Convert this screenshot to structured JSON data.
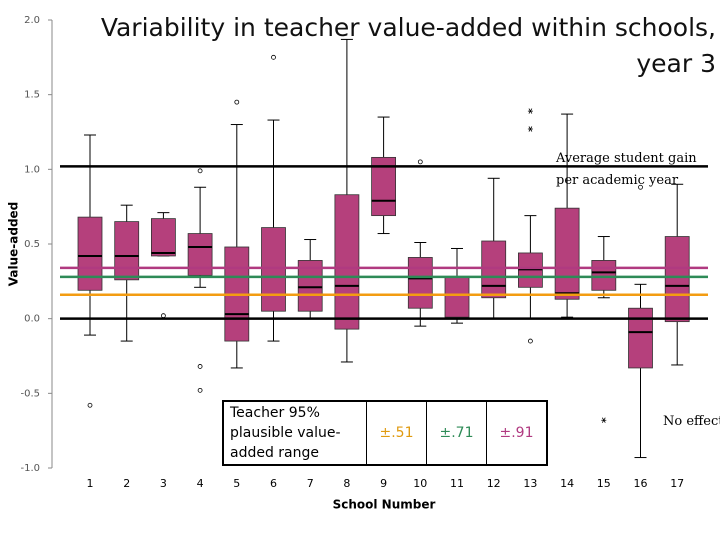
{
  "chart_data": {
    "type": "box",
    "title": "Variability in teacher value-added within schools, year 3",
    "x_label": "School Number",
    "y_label": "Value-added",
    "categories": [
      "1",
      "2",
      "3",
      "4",
      "5",
      "6",
      "7",
      "8",
      "9",
      "10",
      "11",
      "12",
      "13",
      "14",
      "15",
      "16",
      "17"
    ],
    "box_color": "#b5407c",
    "boxes": [
      {
        "low": -0.11,
        "q1": 0.19,
        "median": 0.42,
        "q3": 0.68,
        "high": 1.23,
        "outliers": [
          -0.58
        ],
        "extremes": []
      },
      {
        "low": -0.15,
        "q1": 0.26,
        "median": 0.42,
        "q3": 0.65,
        "high": 0.76,
        "outliers": [],
        "extremes": []
      },
      {
        "low": 0.42,
        "q1": 0.42,
        "median": 0.44,
        "q3": 0.67,
        "high": 0.71,
        "outliers": [
          0.02
        ],
        "extremes": []
      },
      {
        "low": 0.21,
        "q1": 0.29,
        "median": 0.48,
        "q3": 0.57,
        "high": 0.88,
        "outliers": [
          0.99,
          -0.32,
          -0.48
        ],
        "extremes": []
      },
      {
        "low": -0.33,
        "q1": -0.15,
        "median": 0.03,
        "q3": 0.48,
        "high": 1.3,
        "outliers": [
          1.45
        ],
        "extremes": []
      },
      {
        "low": -0.15,
        "q1": 0.05,
        "median": 0.16,
        "q3": 0.61,
        "high": 1.33,
        "outliers": [
          1.75
        ],
        "extremes": []
      },
      {
        "low": 0.0,
        "q1": 0.05,
        "median": 0.21,
        "q3": 0.39,
        "high": 0.53,
        "outliers": [],
        "extremes": []
      },
      {
        "low": -0.29,
        "q1": -0.07,
        "median": 0.22,
        "q3": 0.83,
        "high": 1.87,
        "outliers": [],
        "extremes": []
      },
      {
        "low": 0.57,
        "q1": 0.69,
        "median": 0.79,
        "q3": 1.08,
        "high": 1.35,
        "outliers": [],
        "extremes": []
      },
      {
        "low": -0.05,
        "q1": 0.07,
        "median": 0.27,
        "q3": 0.41,
        "high": 0.51,
        "outliers": [
          1.05
        ],
        "extremes": []
      },
      {
        "low": -0.03,
        "q1": 0.01,
        "median": 0.16,
        "q3": 0.28,
        "high": 0.47,
        "outliers": [],
        "extremes": []
      },
      {
        "low": 0.0,
        "q1": 0.14,
        "median": 0.22,
        "q3": 0.52,
        "high": 0.94,
        "outliers": [],
        "extremes": []
      },
      {
        "low": 0.0,
        "q1": 0.21,
        "median": 0.33,
        "q3": 0.44,
        "high": 0.69,
        "outliers": [
          -0.15
        ],
        "extremes": [
          1.39,
          1.27
        ]
      },
      {
        "low": 0.01,
        "q1": 0.13,
        "median": 0.17,
        "q3": 0.74,
        "high": 1.37,
        "outliers": [],
        "extremes": []
      },
      {
        "low": 0.14,
        "q1": 0.19,
        "median": 0.31,
        "q3": 0.39,
        "high": 0.55,
        "outliers": [],
        "extremes": [
          -0.68
        ]
      },
      {
        "low": -0.93,
        "q1": -0.33,
        "median": -0.09,
        "q3": 0.07,
        "high": 0.23,
        "outliers": [
          0.88
        ],
        "extremes": []
      },
      {
        "low": -0.31,
        "q1": -0.02,
        "median": 0.22,
        "q3": 0.55,
        "high": 0.9,
        "outliers": [],
        "extremes": []
      }
    ],
    "ylim": [
      -1,
      2
    ],
    "yticks": [
      {
        "value": -1,
        "label": "-1.0"
      },
      -0.5,
      {
        "value": 0,
        "label": "0.0"
      },
      0.5,
      {
        "value": 1,
        "label": "1.0"
      },
      1.5,
      {
        "value": 2,
        "label": "2.0"
      }
    ],
    "reference_lines": [
      {
        "value": 1.02,
        "color": "#000000"
      },
      {
        "value": 0.0,
        "color": "#000000"
      },
      {
        "value": 0.34,
        "color": "#b03a80"
      },
      {
        "value": 0.28,
        "color": "#2e8b57"
      },
      {
        "value": 0.16,
        "color": "#f39c12"
      }
    ],
    "annotations": {
      "average_gain": "Average student gain per academic year",
      "no_effect": "No effect"
    },
    "range_table": {
      "label": "Teacher 95% plausible value-added range",
      "ranges": [
        {
          "text": "±.51",
          "color": "#e09a10"
        },
        {
          "text": "±.71",
          "color": "#2e8b57"
        },
        {
          "text": "±.91",
          "color": "#b03a80"
        }
      ]
    }
  }
}
